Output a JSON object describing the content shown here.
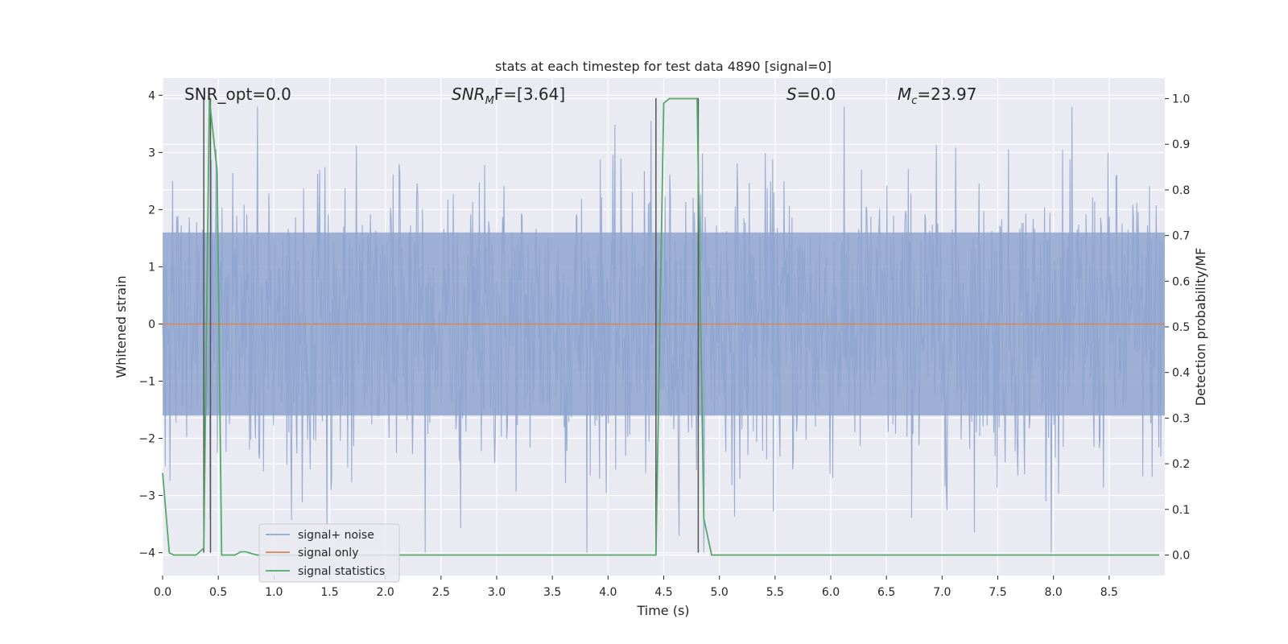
{
  "chart_data": {
    "type": "line",
    "title": "stats at each timestep for test data 4890 [signal=0]",
    "xlabel": "Time (s)",
    "ylabel": "Whitened strain",
    "y2label": "Detection probability/MF",
    "xlim": [
      0.0,
      9.0
    ],
    "ylim": [
      -4.4,
      4.3
    ],
    "y2lim": [
      -0.045,
      1.045
    ],
    "xticks": [
      0.0,
      0.5,
      1.0,
      1.5,
      2.0,
      2.5,
      3.0,
      3.5,
      4.0,
      4.5,
      5.0,
      5.5,
      6.0,
      6.5,
      7.0,
      7.5,
      8.0,
      8.5
    ],
    "xtick_labels": [
      "0.0",
      "0.5",
      "1.0",
      "1.5",
      "2.0",
      "2.5",
      "3.0",
      "3.5",
      "4.0",
      "4.5",
      "5.0",
      "5.5",
      "6.0",
      "6.5",
      "7.0",
      "7.5",
      "8.0",
      "8.5"
    ],
    "yticks": [
      -4,
      -3,
      -2,
      -1,
      0,
      1,
      2,
      3,
      4
    ],
    "ytick_labels": [
      "−4",
      "−3",
      "−2",
      "−1",
      "0",
      "1",
      "2",
      "3",
      "4"
    ],
    "y2ticks": [
      0.0,
      0.1,
      0.2,
      0.3,
      0.4,
      0.5,
      0.6,
      0.7,
      0.8,
      0.9,
      1.0
    ],
    "y2tick_labels": [
      "0.0",
      "0.1",
      "0.2",
      "0.3",
      "0.4",
      "0.5",
      "0.6",
      "0.7",
      "0.8",
      "0.9",
      "1.0"
    ],
    "grid": true,
    "legend_position": "lower-left",
    "annotations": {
      "snr_opt": "SNR_opt=0.0",
      "snr_mf_main": "SNR",
      "snr_mf_sub": "M",
      "snr_mf_tail": "F=[3.64]",
      "s_main": "S",
      "s_tail": "=0.0",
      "mc_main": "M",
      "mc_sub": "c",
      "mc_tail": "=23.97"
    },
    "series": [
      {
        "name": "signal+ noise",
        "color": "#8fa5cf",
        "axis": "left",
        "envelope_typical": 1.6,
        "peak_range": [
          -4.0,
          3.8
        ]
      },
      {
        "name": "signal only",
        "color": "#dd8452",
        "axis": "left",
        "values_constant": 0.0
      },
      {
        "name": "signal statistics",
        "color": "#55a868",
        "axis": "right",
        "x": [
          0.0,
          0.06,
          0.1,
          0.2,
          0.3,
          0.37,
          0.42,
          0.49,
          0.53,
          0.57,
          0.65,
          0.7,
          0.75,
          0.8,
          0.85,
          0.9,
          4.43,
          4.5,
          4.55,
          4.8,
          4.86,
          4.93,
          5.0,
          8.95
        ],
        "y": [
          0.18,
          0.005,
          0.0,
          0.0,
          0.0,
          0.015,
          1.0,
          0.84,
          0.0,
          0.0,
          0.0,
          0.007,
          0.007,
          0.003,
          0.0,
          0.0,
          0.0,
          0.99,
          1.0,
          1.0,
          0.08,
          0.0,
          0.0,
          0.0
        ]
      }
    ],
    "vertical_markers": [
      0.37,
      0.43,
      4.43,
      4.81
    ]
  }
}
